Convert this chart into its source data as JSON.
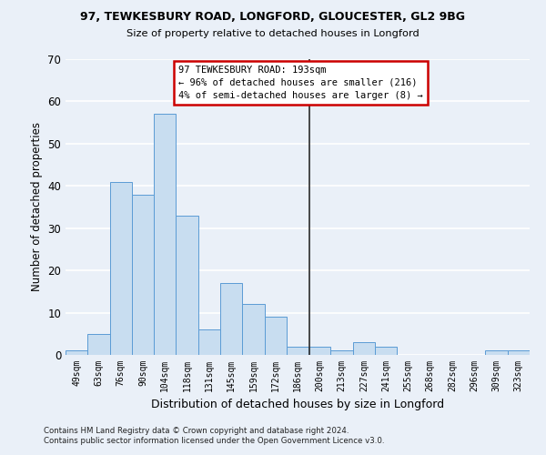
{
  "title1": "97, TEWKESBURY ROAD, LONGFORD, GLOUCESTER, GL2 9BG",
  "title2": "Size of property relative to detached houses in Longford",
  "xlabel": "Distribution of detached houses by size in Longford",
  "ylabel": "Number of detached properties",
  "bar_labels": [
    "49sqm",
    "63sqm",
    "76sqm",
    "90sqm",
    "104sqm",
    "118sqm",
    "131sqm",
    "145sqm",
    "159sqm",
    "172sqm",
    "186sqm",
    "200sqm",
    "213sqm",
    "227sqm",
    "241sqm",
    "255sqm",
    "268sqm",
    "282sqm",
    "296sqm",
    "309sqm",
    "323sqm"
  ],
  "bar_values": [
    1,
    5,
    41,
    38,
    57,
    33,
    6,
    17,
    12,
    9,
    2,
    2,
    1,
    3,
    2,
    0,
    0,
    0,
    0,
    1,
    1
  ],
  "bar_color": "#c8ddf0",
  "bar_edge_color": "#5b9bd5",
  "background_color": "#eaf0f8",
  "grid_color": "#ffffff",
  "vline_x_index": 10.55,
  "vline_color": "#2a2a2a",
  "annotation_text": "97 TEWKESBURY ROAD: 193sqm\n← 96% of detached houses are smaller (216)\n4% of semi-detached houses are larger (8) →",
  "annotation_box_color": "#ffffff",
  "annotation_box_edge": "#cc0000",
  "ylim": [
    0,
    70
  ],
  "yticks": [
    0,
    10,
    20,
    30,
    40,
    50,
    60,
    70
  ],
  "footnote1": "Contains HM Land Registry data © Crown copyright and database right 2024.",
  "footnote2": "Contains public sector information licensed under the Open Government Licence v3.0."
}
